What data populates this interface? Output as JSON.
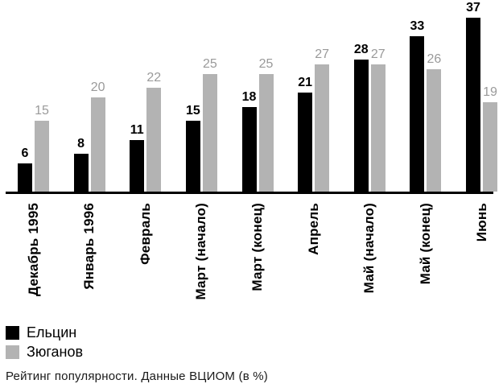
{
  "chart_data": {
    "type": "bar",
    "title": "",
    "caption": "Рейтинг популярности. Данные ВЦИОМ (в %)",
    "categories": [
      "Декабрь 1995",
      "Январь 1996",
      "Февраль",
      "Март (начало)",
      "Март (конец)",
      "Апрель",
      "Май (начало)",
      "Май (конец)",
      "Июнь"
    ],
    "series": [
      {
        "name": "Ельцин",
        "color": "#000000",
        "values": [
          6,
          8,
          11,
          15,
          18,
          21,
          28,
          33,
          37
        ]
      },
      {
        "name": "Зюганов",
        "color": "#b3b3b3",
        "values": [
          15,
          20,
          22,
          25,
          25,
          27,
          27,
          26,
          19
        ]
      }
    ],
    "ylim": [
      0,
      40
    ],
    "grid": false,
    "value_labels": true,
    "legend_position": "bottom-left",
    "xlabel": "",
    "ylabel": ""
  },
  "legend": {
    "items": [
      {
        "label": "Ельцин",
        "color": "#000000"
      },
      {
        "label": "Зюганов",
        "color": "#b3b3b3"
      }
    ]
  },
  "caption": "Рейтинг популярности. Данные ВЦИОМ (в %)",
  "colors": {
    "black_bar": "#000000",
    "gray_bar": "#b3b3b3",
    "black_value_label": "#000000",
    "gray_value_label": "#9a9a9a",
    "axis_line": "#000000",
    "background": "#ffffff"
  }
}
